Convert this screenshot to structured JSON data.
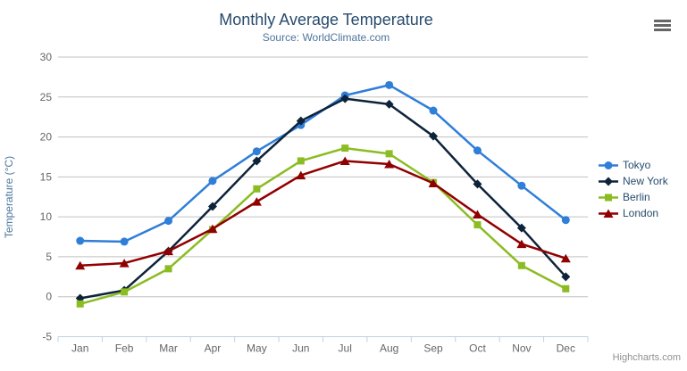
{
  "chart_data": {
    "type": "line",
    "title": "Monthly Average Temperature",
    "subtitle": "Source: WorldClimate.com",
    "xlabel": "",
    "ylabel": "Temperature (°C)",
    "categories": [
      "Jan",
      "Feb",
      "Mar",
      "Apr",
      "May",
      "Jun",
      "Jul",
      "Aug",
      "Sep",
      "Oct",
      "Nov",
      "Dec"
    ],
    "ylim": [
      -5,
      30
    ],
    "ytick_interval": 5,
    "grid": true,
    "legend_position": "right",
    "series": [
      {
        "name": "Tokyo",
        "color": "#2f7ed8",
        "marker": "circle",
        "values": [
          7.0,
          6.9,
          9.5,
          14.5,
          18.2,
          21.5,
          25.2,
          26.5,
          23.3,
          18.3,
          13.9,
          9.6
        ]
      },
      {
        "name": "New York",
        "color": "#0d233a",
        "marker": "diamond",
        "values": [
          -0.2,
          0.8,
          5.7,
          11.3,
          17.0,
          22.0,
          24.8,
          24.1,
          20.1,
          14.1,
          8.6,
          2.5
        ]
      },
      {
        "name": "Berlin",
        "color": "#8bbc21",
        "marker": "square",
        "values": [
          -0.9,
          0.6,
          3.5,
          8.4,
          13.5,
          17.0,
          18.6,
          17.9,
          14.3,
          9.0,
          3.9,
          1.0
        ]
      },
      {
        "name": "London",
        "color": "#910000",
        "marker": "triangle",
        "values": [
          3.9,
          4.2,
          5.7,
          8.5,
          11.9,
          15.2,
          17.0,
          16.6,
          14.2,
          10.3,
          6.6,
          4.8
        ]
      }
    ]
  },
  "credits": {
    "label": "Highcharts.com"
  },
  "colors": {
    "title": "#274b6d",
    "subtitle": "#4d759e",
    "axis_title": "#4d759e",
    "axis_label": "#666666",
    "grid": "#c0c0c0",
    "axis_line": "#c0d0e0",
    "legend_text": "#274b6d",
    "credits": "#909090",
    "menu_icon": "#666666",
    "background": "#ffffff"
  }
}
